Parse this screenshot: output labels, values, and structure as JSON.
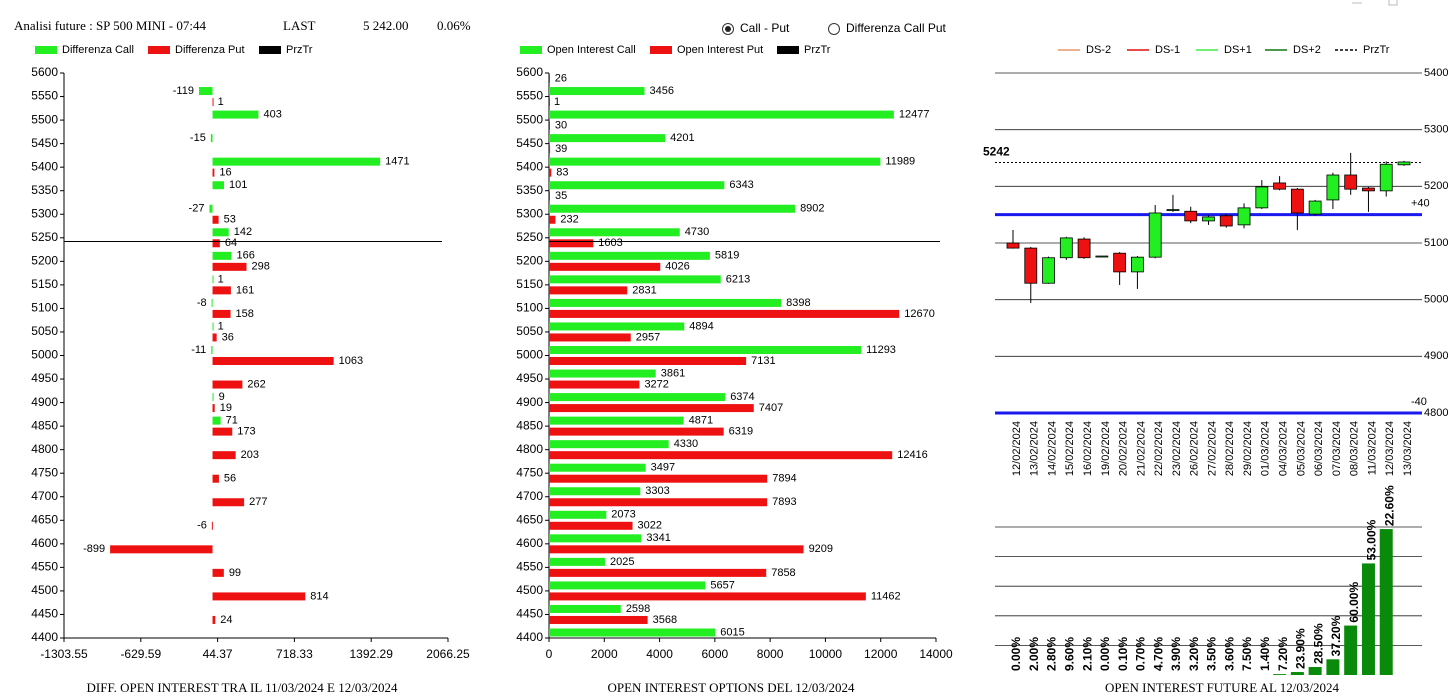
{
  "header": {
    "title": "Analisi future : SP 500 MINI - 07:44",
    "last_label": "LAST",
    "last": "5 242.00",
    "change": "0.06%"
  },
  "radio": [
    {
      "label": "Call - Put",
      "selected": true
    },
    {
      "label": "Differenza Call Put",
      "selected": false
    }
  ],
  "chart_data": [
    {
      "type": "bar",
      "orientation": "horizontal",
      "caption": "DIFF. OPEN INTEREST TRA IL 11/03/2024 E 12/03/2024",
      "categories": [
        5600,
        5550,
        5500,
        5450,
        5400,
        5350,
        5300,
        5250,
        5200,
        5150,
        5100,
        5050,
        5000,
        4950,
        4900,
        4850,
        4800,
        4750,
        4700,
        4650,
        4600,
        4550,
        4500,
        4450,
        4400
      ],
      "ylim": [
        4400,
        5600
      ],
      "series": [
        {
          "name": "Differenza Call",
          "color": "#22ee22",
          "values": [
            null,
            -119,
            403,
            -15,
            1471,
            101,
            -27,
            142,
            166,
            1,
            -8,
            1,
            -11,
            null,
            9,
            71,
            null,
            null,
            null,
            null,
            null,
            null,
            null,
            null,
            null
          ]
        },
        {
          "name": "Differenza Put",
          "color": "#ee1111",
          "values": [
            null,
            1,
            null,
            null,
            16,
            null,
            53,
            64,
            298,
            161,
            158,
            36,
            1063,
            262,
            19,
            173,
            203,
            56,
            277,
            -6,
            -899,
            99,
            814,
            24,
            null
          ]
        }
      ],
      "przTr": {
        "name": "PrzTr",
        "value": 5242,
        "color": "#000000"
      },
      "xlim": [
        -1303.55,
        2066.25
      ],
      "xticks": [
        -1303.55,
        -629.59,
        44.37,
        718.33,
        1392.29,
        2066.25
      ]
    },
    {
      "type": "bar",
      "orientation": "horizontal",
      "caption": "OPEN INTEREST OPTIONS DEL 12/03/2024",
      "categories": [
        5600,
        5550,
        5500,
        5450,
        5400,
        5350,
        5300,
        5250,
        5200,
        5150,
        5100,
        5050,
        5000,
        4950,
        4900,
        4850,
        4800,
        4750,
        4700,
        4650,
        4600,
        4550,
        4500,
        4450,
        4400
      ],
      "ylim": [
        4400,
        5600
      ],
      "series": [
        {
          "name": "Open Interest Call",
          "color": "#22ee22",
          "values": [
            null,
            3456,
            12477,
            4201,
            11989,
            6343,
            8902,
            4730,
            5819,
            6213,
            8398,
            4894,
            11293,
            3861,
            6374,
            4871,
            4330,
            3497,
            3303,
            2073,
            3341,
            2025,
            5657,
            2598,
            6015
          ]
        },
        {
          "name": "Open Interest Put",
          "color": "#ee1111",
          "values": [
            26,
            1,
            30,
            39,
            83,
            35,
            232,
            1603,
            4026,
            2831,
            12670,
            2957,
            7131,
            3272,
            7407,
            6319,
            12416,
            7894,
            7893,
            3022,
            9209,
            7858,
            11462,
            3568,
            null
          ]
        }
      ],
      "przTr": {
        "name": "PrzTr",
        "value": 5242,
        "color": "#000000"
      },
      "xlim": [
        0,
        14000
      ],
      "xticks": [
        0,
        2000,
        4000,
        6000,
        8000,
        10000,
        12000,
        14000
      ]
    },
    {
      "type": "candlestick",
      "caption": "OPEN INTEREST FUTURE AL 12/03/2024",
      "legend": [
        {
          "name": "DS-2",
          "color": "#e8956b",
          "dash": false
        },
        {
          "name": "DS-1",
          "color": "#dd1111",
          "dash": false
        },
        {
          "name": "DS+1",
          "color": "#44ee44",
          "dash": false
        },
        {
          "name": "DS+2",
          "color": "#117711",
          "dash": false
        }
      ],
      "przTr": {
        "name": "PrzTr",
        "value": 5242,
        "color": "#000000"
      },
      "categories": [
        "12/02/2024",
        "13/02/2024",
        "14/02/2024",
        "15/02/2024",
        "16/02/2024",
        "19/02/2024",
        "20/02/2024",
        "21/02/2024",
        "22/02/2024",
        "23/02/2024",
        "26/02/2024",
        "27/02/2024",
        "28/02/2024",
        "29/02/2024",
        "01/03/2024",
        "04/03/2024",
        "05/03/2024",
        "06/03/2024",
        "07/03/2024",
        "08/03/2024",
        "11/03/2024",
        "12/03/2024",
        "13/03/2024"
      ],
      "open": [
        5100,
        5091,
        5029,
        5074,
        5107,
        5077,
        5082,
        5049,
        5075,
        5158,
        5156,
        5139,
        5148,
        5132,
        5162,
        5206,
        5195,
        5151,
        5176,
        5220,
        5197,
        5192,
        5238
      ],
      "high": [
        5123,
        5093,
        5076,
        5111,
        5110,
        5077,
        5084,
        5077,
        5167,
        5185,
        5164,
        5149,
        5151,
        5170,
        5211,
        5218,
        5197,
        5176,
        5224,
        5259,
        5199,
        5244,
        5245
      ],
      "low": [
        5090,
        4994,
        5028,
        5070,
        5072,
        5077,
        5026,
        5019,
        5073,
        5155,
        5135,
        5132,
        5127,
        5126,
        5160,
        5193,
        5123,
        5148,
        5160,
        5185,
        5155,
        5182,
        5236
      ],
      "close": [
        5091,
        5029,
        5074,
        5109,
        5074,
        5077,
        5049,
        5075,
        5153,
        5159,
        5139,
        5146,
        5130,
        5162,
        5199,
        5195,
        5153,
        5174,
        5220,
        5195,
        5192,
        5239,
        5243
      ],
      "up_color": "#22ee22",
      "down_color": "#ee1111",
      "levels": [
        {
          "value": 5150,
          "label": "+40"
        },
        {
          "value": 4800,
          "label": "-40"
        }
      ],
      "ylim": [
        4800,
        5400
      ],
      "yticks": [
        4800,
        4900,
        5000,
        5100,
        5200,
        5300,
        5400
      ]
    },
    {
      "type": "bar",
      "orientation": "vertical",
      "color": "#0a8a0a",
      "values": [
        0,
        0,
        0,
        0,
        0,
        0,
        0,
        0,
        0,
        0,
        0,
        0,
        0,
        0,
        0,
        0.03,
        0.1,
        0.27,
        0.53,
        1.67,
        3.77,
        4.93
      ],
      "annotations": [
        "0.00%",
        "2.00%",
        "2.80%",
        "9.60%",
        "2.10%",
        "0.00%",
        "0.10%",
        "0.70%",
        "4.70%",
        "3.90%",
        "3.20%",
        "3.50%",
        "3.60%",
        "7.50%",
        "1.40%",
        "7.20%",
        "23.90%",
        "28.50%",
        "37.20%",
        "60.00%",
        "53.00%",
        "22.60%"
      ],
      "ylim": [
        0,
        5
      ],
      "gridlines": [
        1,
        2,
        3,
        4,
        5
      ]
    }
  ]
}
